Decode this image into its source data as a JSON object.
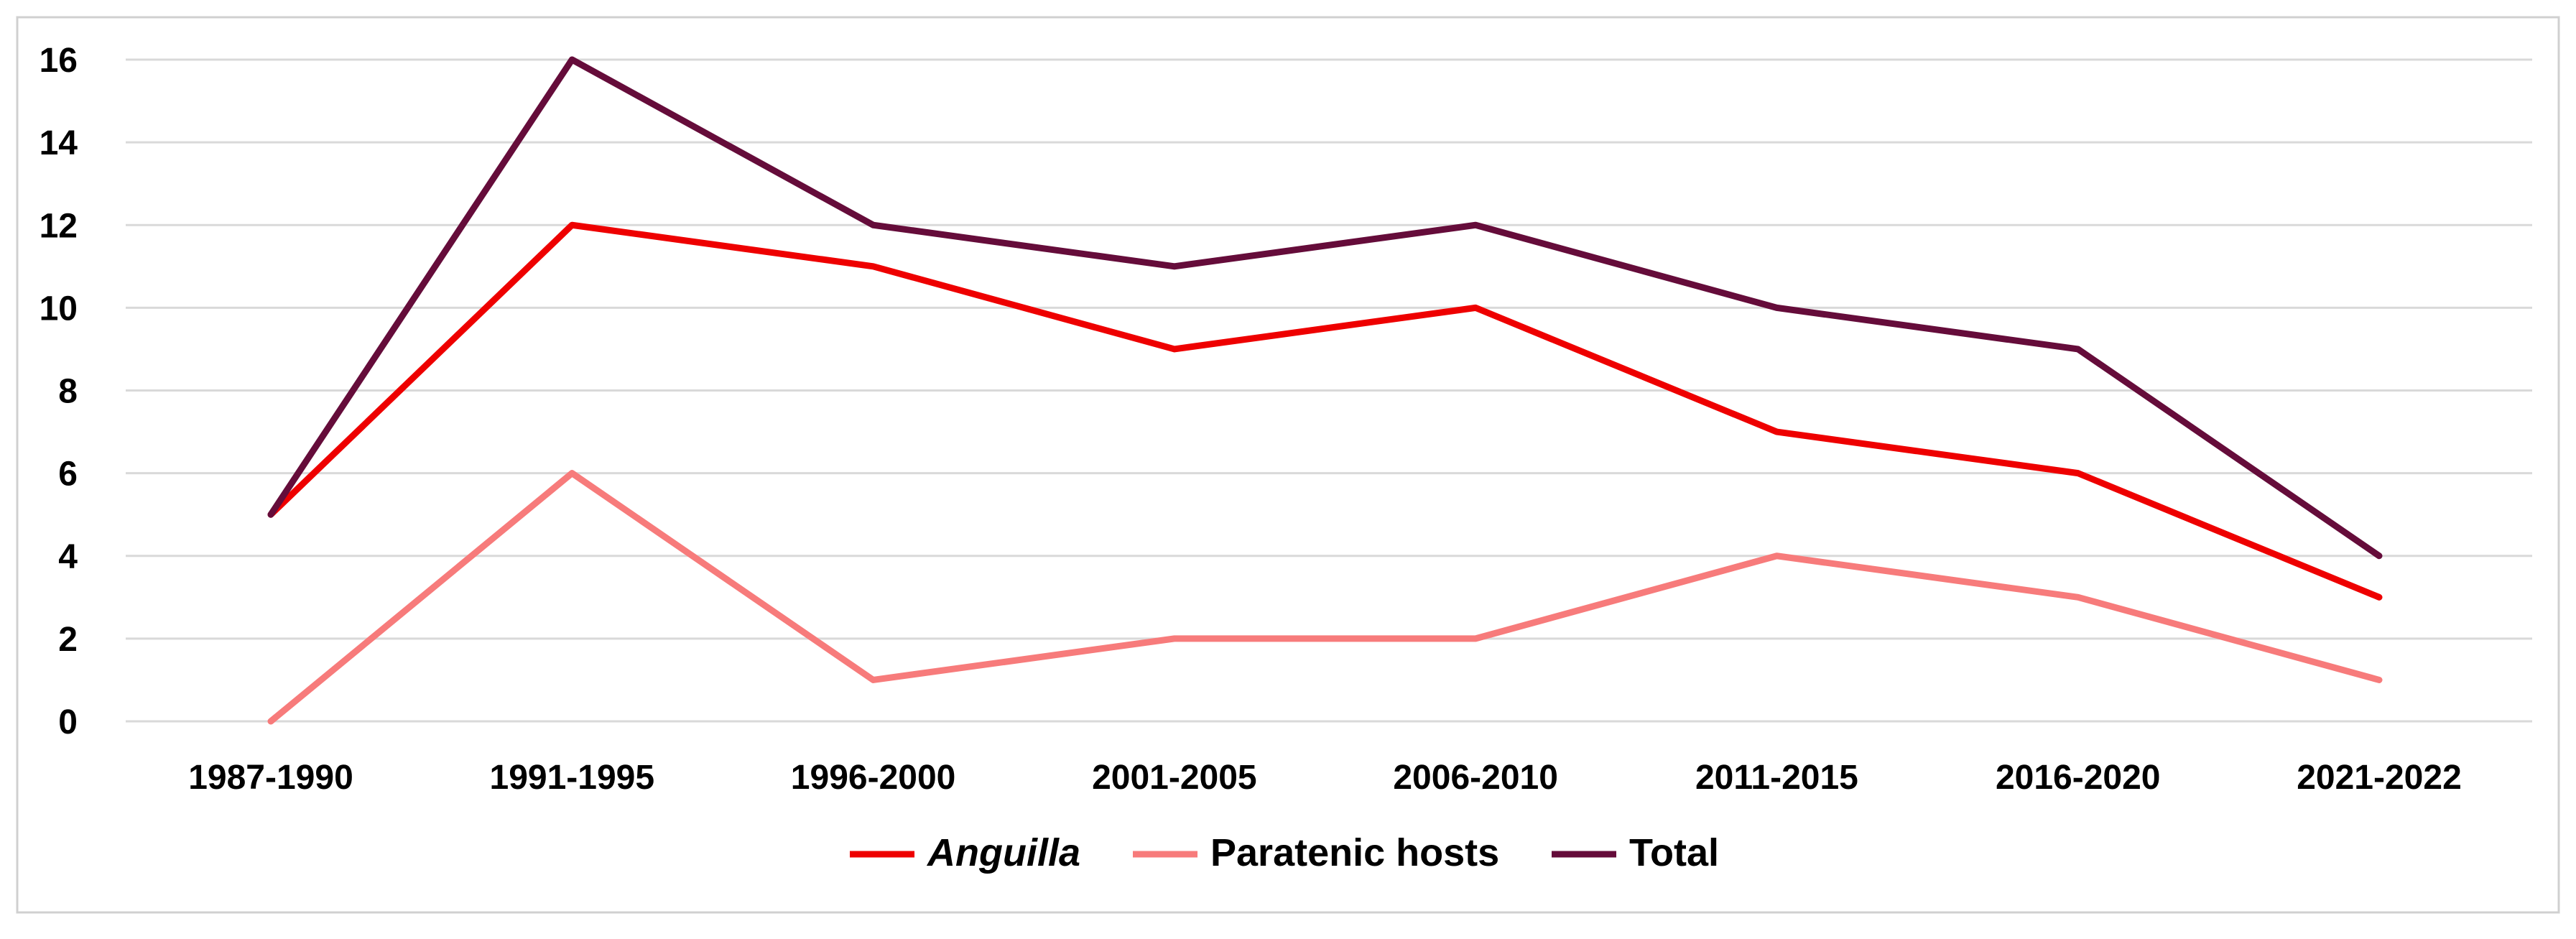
{
  "chart_data": {
    "type": "line",
    "title": "",
    "xlabel": "",
    "ylabel": "",
    "categories": [
      "1987-1990",
      "1991-1995",
      "1996-2000",
      "2001-2005",
      "2006-2010",
      "2011-2015",
      "2016-2020",
      "2021-2022"
    ],
    "ylim": [
      0,
      16
    ],
    "yticks": [
      "0",
      "2",
      "4",
      "6",
      "8",
      "10",
      "12",
      "14",
      "16"
    ],
    "grid": true,
    "legend_position": "bottom",
    "series": [
      {
        "name": "Anguilla",
        "italic": true,
        "color": "#ee0000",
        "values": [
          5,
          12,
          11,
          9,
          10,
          7,
          6,
          3
        ]
      },
      {
        "name": "Paratenic hosts",
        "italic": false,
        "color": "#f77b7b",
        "values": [
          0,
          6,
          1,
          2,
          2,
          4,
          3,
          1
        ]
      },
      {
        "name": "Total",
        "italic": false,
        "color": "#650c3a",
        "values": [
          5,
          16,
          12,
          11,
          12,
          10,
          9,
          4
        ]
      }
    ]
  }
}
